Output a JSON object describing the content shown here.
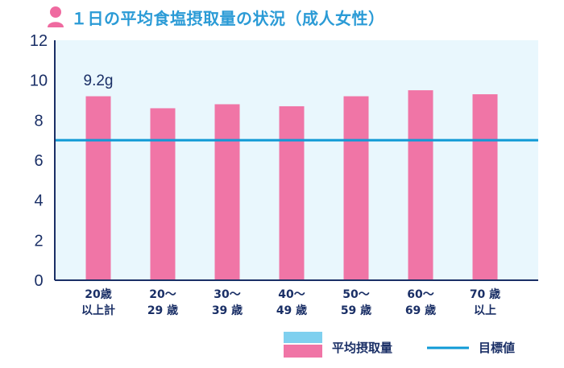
{
  "title": "１日の平均食塩摂取量の状況（成人女性）",
  "colors": {
    "title": "#2b9bd6",
    "bar": "#f075a6",
    "bar_dark": "#e05a91",
    "target_line": "#0f9ad6",
    "plot_bg": "#e9f7fd",
    "axis": "#1a2f66",
    "text": "#1a2f66",
    "icon": "#ef6aa0"
  },
  "legend": {
    "avg_label": "平均摂取量",
    "target_label": "目標値"
  },
  "chart_data": {
    "type": "bar",
    "categories": [
      [
        "20歳",
        "以上計"
      ],
      [
        "20～",
        "29 歳"
      ],
      [
        "30～",
        "39 歳"
      ],
      [
        "40～",
        "49 歳"
      ],
      [
        "50～",
        "59 歳"
      ],
      [
        "60～",
        "69 歳"
      ],
      [
        "70 歳",
        "以上"
      ]
    ],
    "series": [
      {
        "name": "平均摂取量",
        "values": [
          9.2,
          8.6,
          8.8,
          8.7,
          9.2,
          9.5,
          9.3
        ]
      }
    ],
    "target": {
      "name": "目標値",
      "value": 7.0
    },
    "data_labels": [
      {
        "index": 0,
        "text": "9.2g"
      }
    ],
    "ylim": [
      0,
      12
    ],
    "yticks": [
      0,
      2,
      4,
      6,
      8,
      10,
      12
    ],
    "grid": false,
    "legend_position": "bottom-right"
  }
}
